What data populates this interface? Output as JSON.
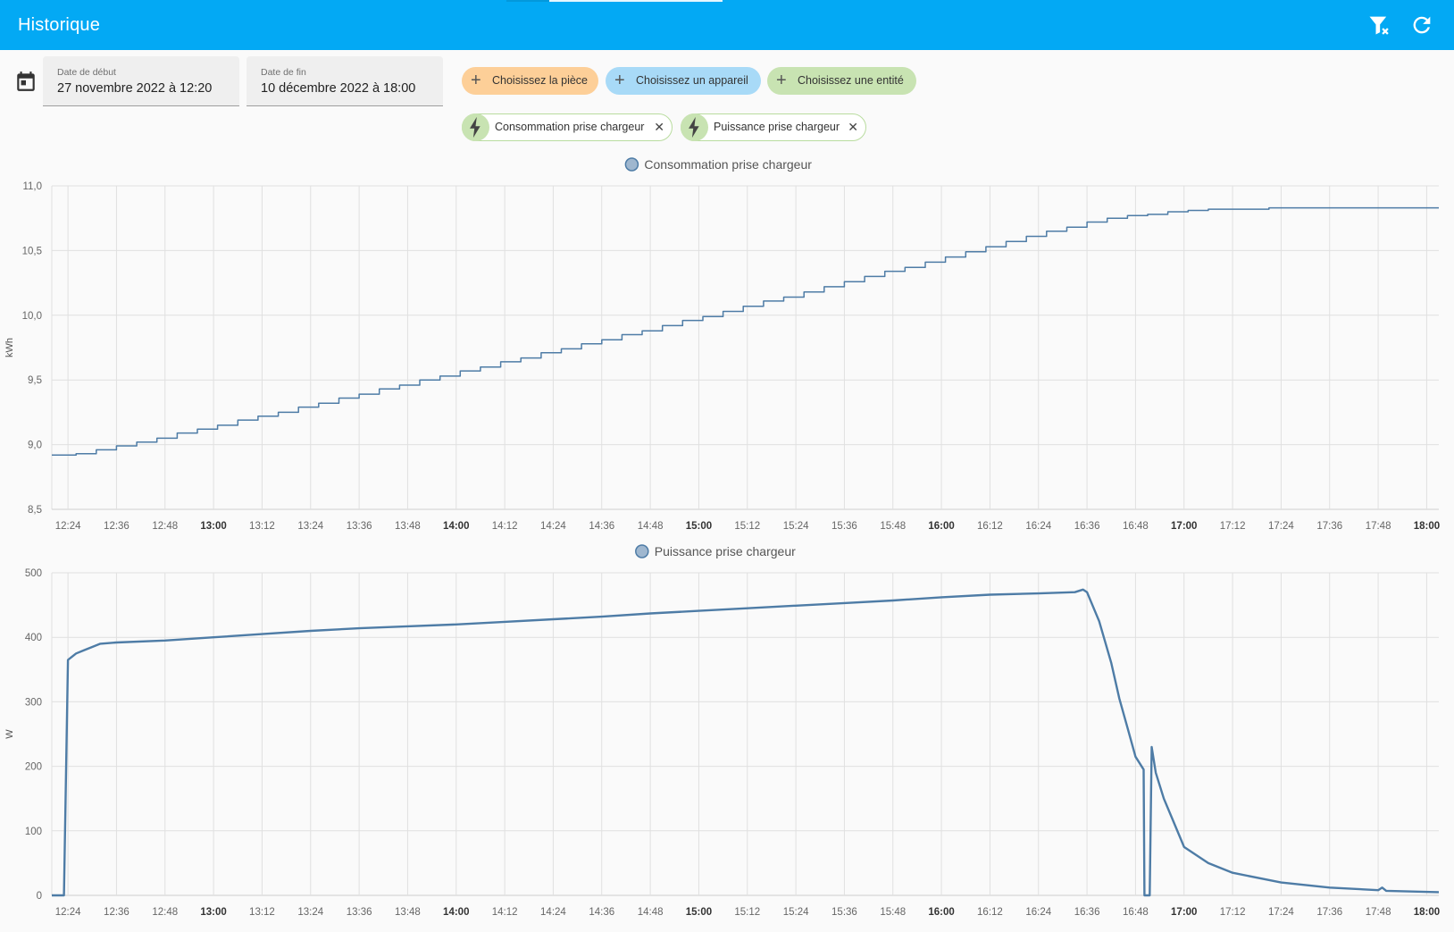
{
  "header": {
    "title": "Historique",
    "icons": [
      "filter-remove-icon",
      "refresh-icon"
    ]
  },
  "filters": {
    "start": {
      "label": "Date de début",
      "value": "27 novembre 2022 à 12:20"
    },
    "end": {
      "label": "Date de fin",
      "value": "10 décembre 2022 à 18:00"
    },
    "chips": [
      {
        "label": "Choisissez la pièce",
        "color": "#fdcf98"
      },
      {
        "label": "Choisissez un appareil",
        "color": "#a8daf7"
      },
      {
        "label": "Choisissez une entité",
        "color": "#c8e3b2"
      }
    ],
    "entities": [
      {
        "label": "Consommation prise chargeur"
      },
      {
        "label": "Puissance prise chargeur"
      }
    ]
  },
  "chart_data": [
    {
      "type": "line",
      "title": "",
      "legend": "Consommation prise chargeur",
      "legend_placement": "top-center",
      "ylabel": "kWh",
      "xlabel": "",
      "ylim": [
        8.5,
        11.0
      ],
      "yticks": [
        "8,5",
        "9,0",
        "9,5",
        "10,0",
        "10,5",
        "11,0"
      ],
      "xlim": [
        "12:20",
        "18:03"
      ],
      "xticks": [
        "12:24",
        "12:36",
        "12:48",
        "13:00",
        "13:12",
        "13:24",
        "13:36",
        "13:48",
        "14:00",
        "14:12",
        "14:24",
        "14:36",
        "14:48",
        "15:00",
        "15:12",
        "15:24",
        "15:36",
        "15:48",
        "16:00",
        "16:12",
        "16:24",
        "16:36",
        "16:48",
        "17:00",
        "17:12",
        "17:24",
        "17:36",
        "17:48",
        "18:00"
      ],
      "xticks_bold": [
        "13:00",
        "14:00",
        "15:00",
        "16:00",
        "17:00",
        "18:00"
      ],
      "grid": true,
      "step": true,
      "color": "#4e7ca6",
      "series": [
        {
          "name": "Consommation prise chargeur",
          "points": [
            [
              "12:20",
              8.92
            ],
            [
              "12:26",
              8.93
            ],
            [
              "12:31",
              8.96
            ],
            [
              "12:36",
              8.99
            ],
            [
              "12:41",
              9.02
            ],
            [
              "12:46",
              9.05
            ],
            [
              "12:51",
              9.09
            ],
            [
              "12:56",
              9.12
            ],
            [
              "13:01",
              9.15
            ],
            [
              "13:06",
              9.19
            ],
            [
              "13:11",
              9.22
            ],
            [
              "13:16",
              9.25
            ],
            [
              "13:21",
              9.29
            ],
            [
              "13:26",
              9.32
            ],
            [
              "13:31",
              9.36
            ],
            [
              "13:36",
              9.39
            ],
            [
              "13:41",
              9.43
            ],
            [
              "13:46",
              9.46
            ],
            [
              "13:51",
              9.5
            ],
            [
              "13:56",
              9.53
            ],
            [
              "14:01",
              9.57
            ],
            [
              "14:06",
              9.6
            ],
            [
              "14:11",
              9.64
            ],
            [
              "14:16",
              9.67
            ],
            [
              "14:21",
              9.71
            ],
            [
              "14:26",
              9.74
            ],
            [
              "14:31",
              9.78
            ],
            [
              "14:36",
              9.81
            ],
            [
              "14:41",
              9.85
            ],
            [
              "14:46",
              9.88
            ],
            [
              "14:51",
              9.92
            ],
            [
              "14:56",
              9.96
            ],
            [
              "15:01",
              9.99
            ],
            [
              "15:06",
              10.03
            ],
            [
              "15:11",
              10.07
            ],
            [
              "15:16",
              10.11
            ],
            [
              "15:21",
              10.14
            ],
            [
              "15:26",
              10.18
            ],
            [
              "15:31",
              10.22
            ],
            [
              "15:36",
              10.26
            ],
            [
              "15:41",
              10.3
            ],
            [
              "15:46",
              10.34
            ],
            [
              "15:51",
              10.37
            ],
            [
              "15:56",
              10.41
            ],
            [
              "16:01",
              10.45
            ],
            [
              "16:06",
              10.49
            ],
            [
              "16:11",
              10.53
            ],
            [
              "16:16",
              10.57
            ],
            [
              "16:21",
              10.61
            ],
            [
              "16:26",
              10.65
            ],
            [
              "16:31",
              10.68
            ],
            [
              "16:36",
              10.72
            ],
            [
              "16:41",
              10.75
            ],
            [
              "16:46",
              10.77
            ],
            [
              "16:51",
              10.78
            ],
            [
              "16:56",
              10.8
            ],
            [
              "17:01",
              10.81
            ],
            [
              "17:06",
              10.82
            ],
            [
              "17:21",
              10.83
            ],
            [
              "18:03",
              10.83
            ]
          ]
        }
      ]
    },
    {
      "type": "line",
      "title": "",
      "legend": "Puissance prise chargeur",
      "legend_placement": "top-center",
      "ylabel": "W",
      "xlabel": "",
      "ylim": [
        0,
        500
      ],
      "yticks": [
        "0",
        "100",
        "200",
        "300",
        "400",
        "500"
      ],
      "xlim": [
        "12:20",
        "18:03"
      ],
      "xticks": [
        "12:24",
        "12:36",
        "12:48",
        "13:00",
        "13:12",
        "13:24",
        "13:36",
        "13:48",
        "14:00",
        "14:12",
        "14:24",
        "14:36",
        "14:48",
        "15:00",
        "15:12",
        "15:24",
        "15:36",
        "15:48",
        "16:00",
        "16:12",
        "16:24",
        "16:36",
        "16:48",
        "17:00",
        "17:12",
        "17:24",
        "17:36",
        "17:48",
        "18:00"
      ],
      "xticks_bold": [
        "13:00",
        "14:00",
        "15:00",
        "16:00",
        "17:00",
        "18:00"
      ],
      "grid": true,
      "step": false,
      "color": "#4e7ca6",
      "series": [
        {
          "name": "Puissance prise chargeur",
          "points": [
            [
              "12:20",
              0
            ],
            [
              "12:23",
              0
            ],
            [
              "12:24",
              365
            ],
            [
              "12:25",
              370
            ],
            [
              "12:26",
              375
            ],
            [
              "12:28",
              380
            ],
            [
              "12:30",
              385
            ],
            [
              "12:32",
              390
            ],
            [
              "12:36",
              392
            ],
            [
              "12:48",
              395
            ],
            [
              "13:00",
              400
            ],
            [
              "13:12",
              405
            ],
            [
              "13:24",
              410
            ],
            [
              "13:36",
              414
            ],
            [
              "13:48",
              417
            ],
            [
              "14:00",
              420
            ],
            [
              "14:12",
              424
            ],
            [
              "14:24",
              428
            ],
            [
              "14:36",
              432
            ],
            [
              "14:48",
              437
            ],
            [
              "15:00",
              441
            ],
            [
              "15:12",
              445
            ],
            [
              "15:24",
              449
            ],
            [
              "15:36",
              453
            ],
            [
              "15:48",
              457
            ],
            [
              "16:00",
              462
            ],
            [
              "16:12",
              466
            ],
            [
              "16:24",
              468
            ],
            [
              "16:33",
              470
            ],
            [
              "16:35",
              474
            ],
            [
              "16:36",
              470
            ],
            [
              "16:39",
              425
            ],
            [
              "16:42",
              360
            ],
            [
              "16:44",
              305
            ],
            [
              "16:46",
              260
            ],
            [
              "16:48",
              215
            ],
            [
              "16:50",
              195
            ],
            [
              "16:50.2",
              0
            ],
            [
              "16:51.5",
              0
            ],
            [
              "16:52",
              230
            ],
            [
              "16:53",
              190
            ],
            [
              "16:55",
              150
            ],
            [
              "16:57",
              120
            ],
            [
              "17:00",
              75
            ],
            [
              "17:06",
              50
            ],
            [
              "17:12",
              35
            ],
            [
              "17:24",
              20
            ],
            [
              "17:36",
              12
            ],
            [
              "17:48",
              8
            ],
            [
              "17:49",
              12
            ],
            [
              "17:50",
              7
            ],
            [
              "18:03",
              5
            ]
          ]
        }
      ]
    }
  ]
}
